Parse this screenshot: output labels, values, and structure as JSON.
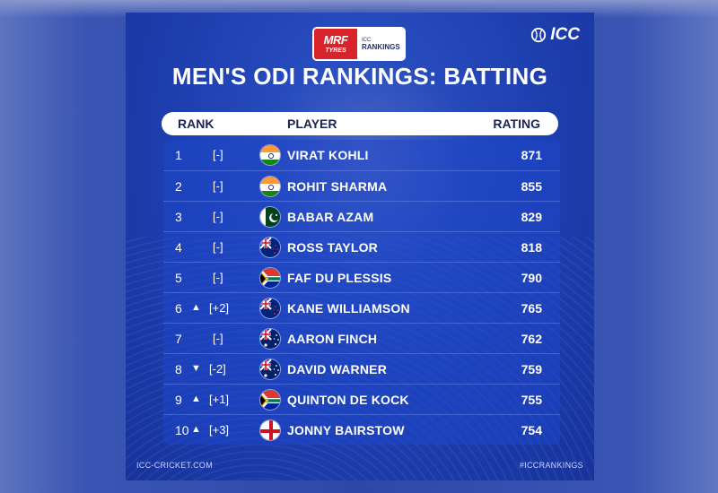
{
  "sponsor": {
    "brand_top": "MRF",
    "brand_bottom": "TYRES",
    "icc_small": "ICC",
    "rankings": "RANKINGS"
  },
  "logo": {
    "icon": "cricket-ball-icon",
    "text": "ICC"
  },
  "title": "MEN'S ODI RANKINGS: BATTING",
  "headers": {
    "rank": "RANK",
    "player": "PLAYER",
    "rating": "RATING"
  },
  "rows": [
    {
      "rank": "1",
      "move_icon": "",
      "move": "[-]",
      "flag": "india",
      "player": "VIRAT KOHLI",
      "rating": "871"
    },
    {
      "rank": "2",
      "move_icon": "",
      "move": "[-]",
      "flag": "india",
      "player": "ROHIT SHARMA",
      "rating": "855"
    },
    {
      "rank": "3",
      "move_icon": "",
      "move": "[-]",
      "flag": "pakistan",
      "player": "BABAR AZAM",
      "rating": "829"
    },
    {
      "rank": "4",
      "move_icon": "",
      "move": "[-]",
      "flag": "new-zealand",
      "player": "ROSS TAYLOR",
      "rating": "818"
    },
    {
      "rank": "5",
      "move_icon": "",
      "move": "[-]",
      "flag": "south-africa",
      "player": "FAF DU PLESSIS",
      "rating": "790"
    },
    {
      "rank": "6",
      "move_icon": "▲",
      "move": "[+2]",
      "flag": "new-zealand",
      "player": "KANE WILLIAMSON",
      "rating": "765"
    },
    {
      "rank": "7",
      "move_icon": "",
      "move": "[-]",
      "flag": "australia",
      "player": "AARON FINCH",
      "rating": "762"
    },
    {
      "rank": "8",
      "move_icon": "▼",
      "move": "[-2]",
      "flag": "australia",
      "player": "DAVID WARNER",
      "rating": "759"
    },
    {
      "rank": "9",
      "move_icon": "▲",
      "move": "[+1]",
      "flag": "south-africa",
      "player": "QUINTON DE KOCK",
      "rating": "755"
    },
    {
      "rank": "10",
      "move_icon": "▲",
      "move": "[+3]",
      "flag": "england",
      "player": "JONNY BAIRSTOW",
      "rating": "754"
    }
  ],
  "footer": {
    "left": "ICC-CRICKET.COM",
    "right": "#ICCRANKINGS"
  },
  "colors": {
    "background": "#1e3fb0",
    "header_bar": "#ffffff",
    "sponsor_red": "#d8232a"
  }
}
